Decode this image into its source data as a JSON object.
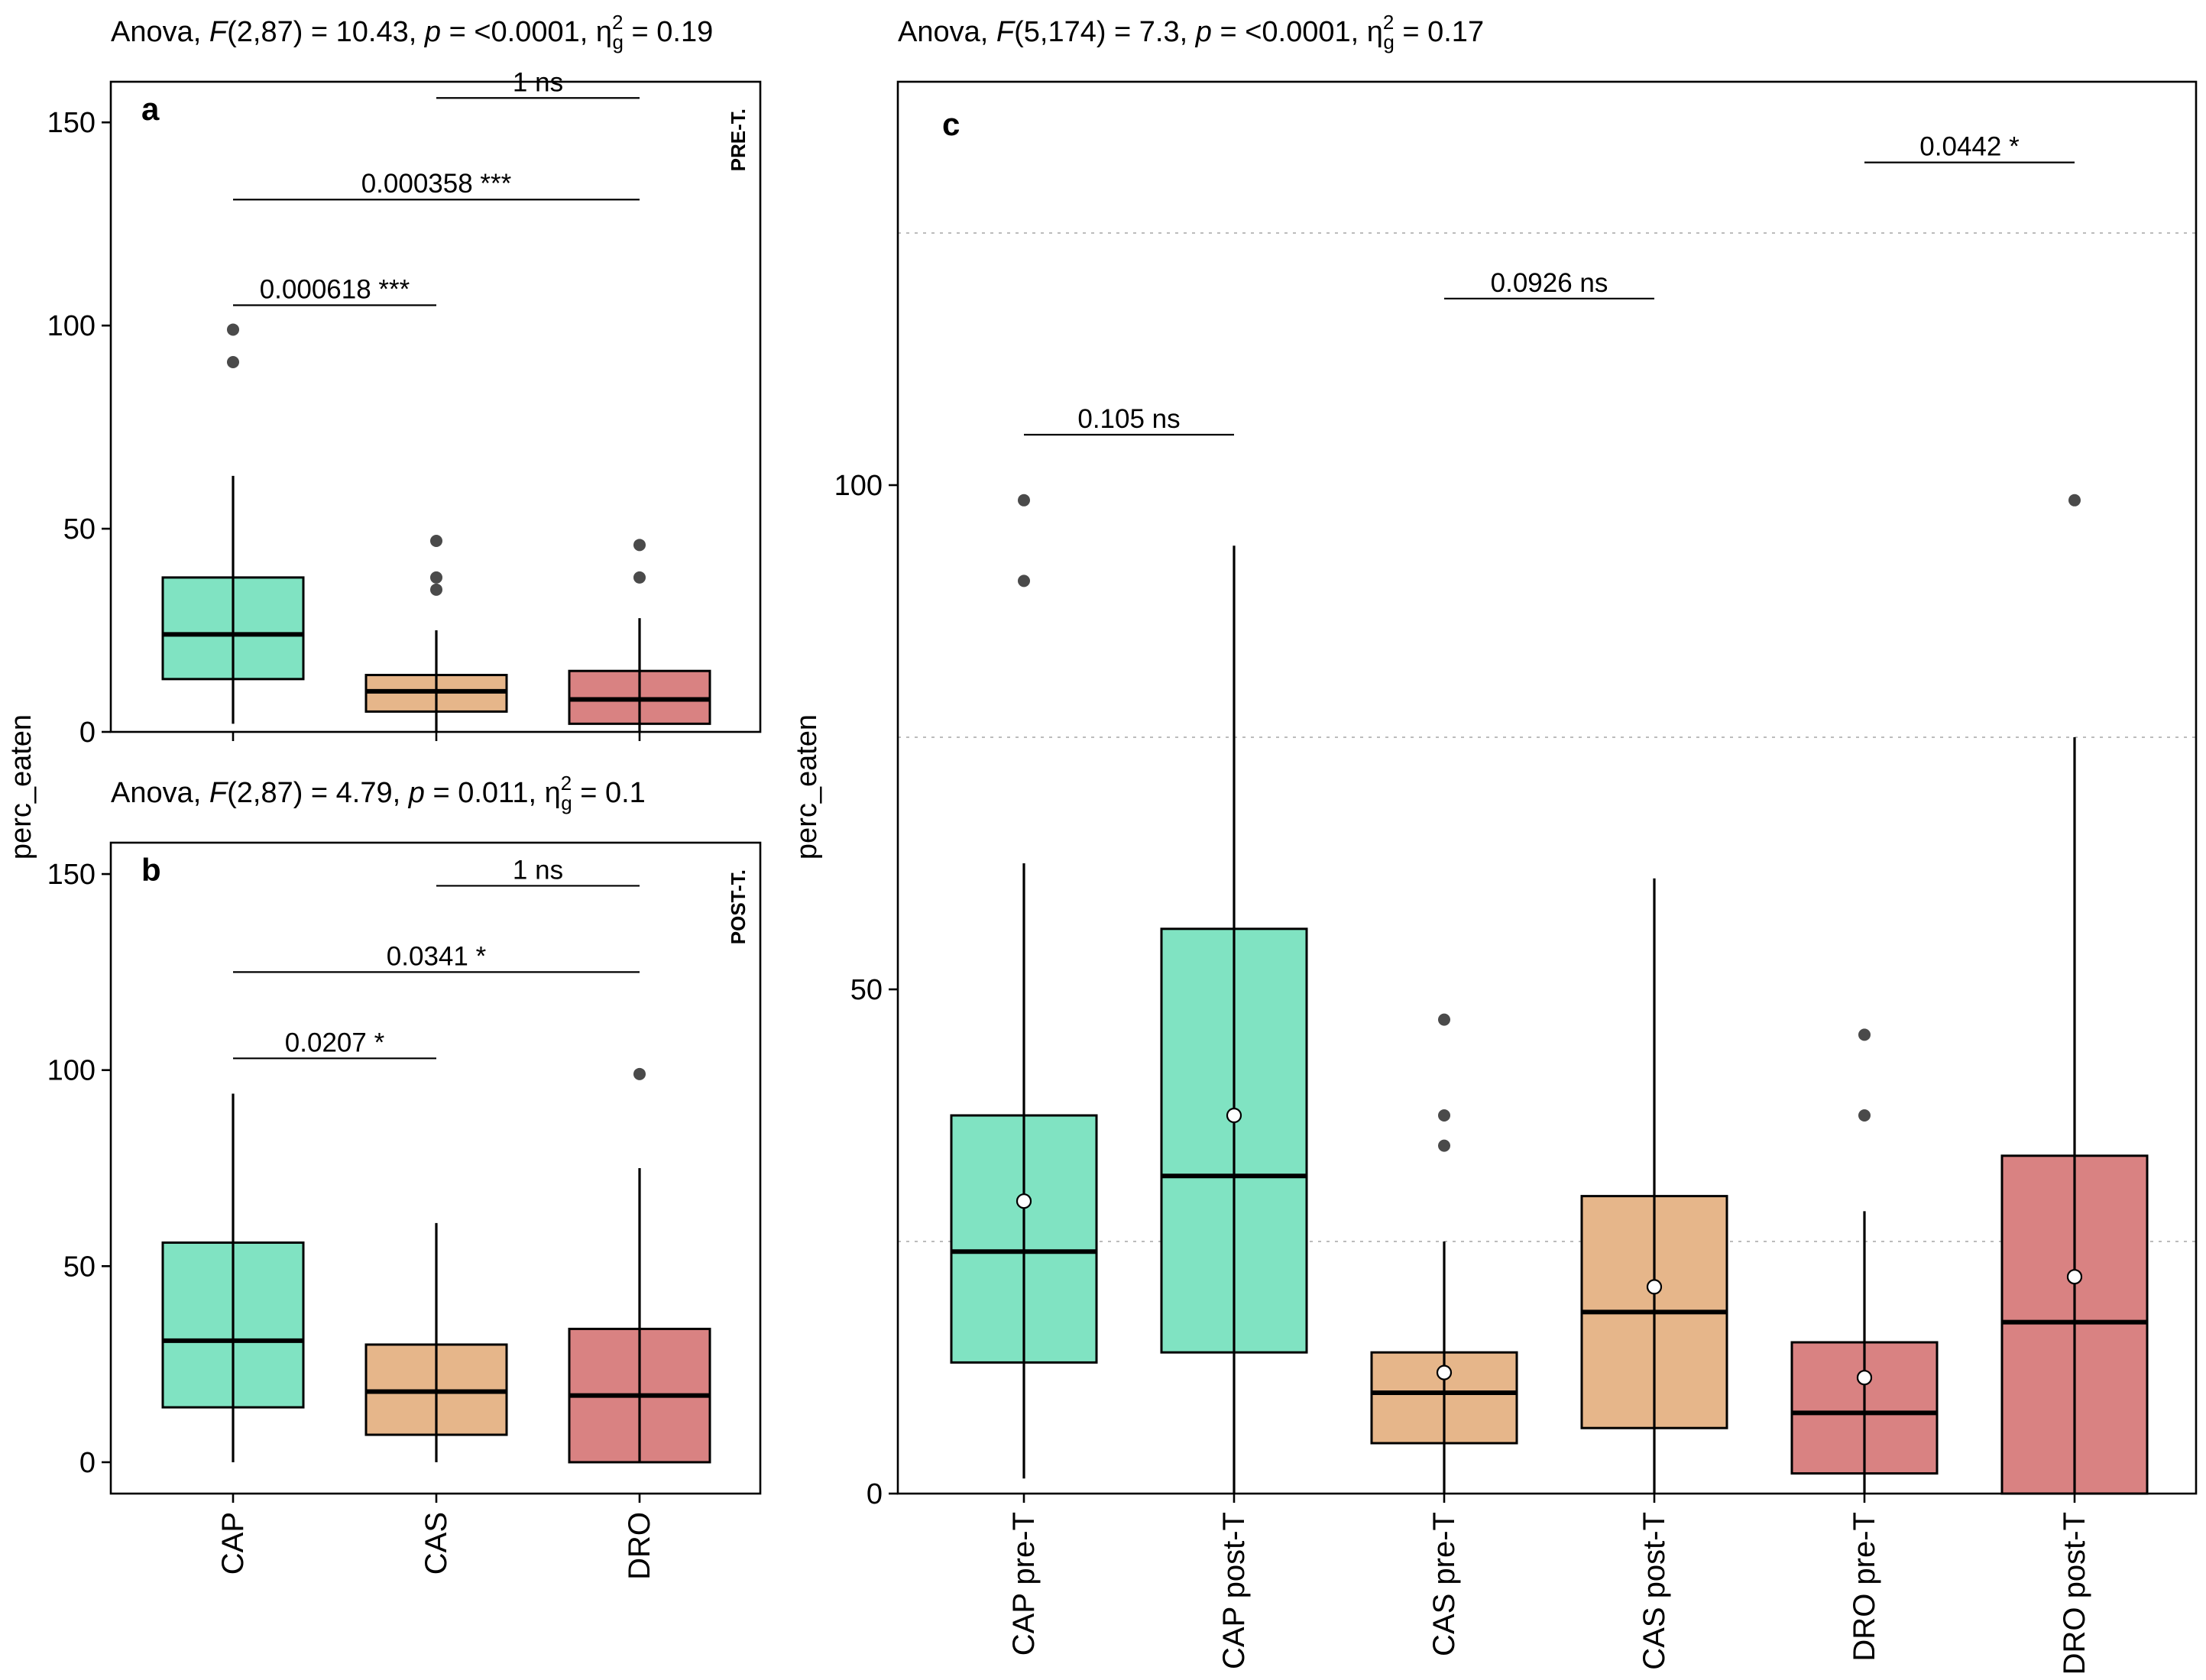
{
  "colors": {
    "CAP": "#80e3c2",
    "CAS": "#e6b68a",
    "DRO": "#d98282"
  },
  "chart_data": [
    {
      "id": "a",
      "type": "box",
      "panel_label": "a",
      "strip_label": "PRE-T.",
      "anova": {
        "lead": "Anova, ",
        "F": "F",
        "df": "(2,87) = 10.43, ",
        "p": "p",
        "pval": " = <0.0001, ",
        "eta": "η",
        "sup": "2",
        "sub": "g",
        "eval": " = 0.19"
      },
      "ylabel": "perc_eaten",
      "ylim": [
        0,
        160
      ],
      "yticks": [
        0,
        50,
        100,
        150
      ],
      "ytick_labels": [
        "0",
        "50",
        "100",
        "150"
      ],
      "categories": [
        "CAP",
        "CAS",
        "DRO"
      ],
      "show_xtick_labels": false,
      "boxes": [
        {
          "cat": "CAP",
          "color_key": "CAP",
          "q1": 13,
          "median": 24,
          "q3": 38,
          "whisker_low": 2,
          "whisker_high": 63,
          "outliers": [
            91,
            99
          ]
        },
        {
          "cat": "CAS",
          "color_key": "CAS",
          "q1": 5,
          "median": 10,
          "q3": 14,
          "whisker_low": 0,
          "whisker_high": 25,
          "outliers": [
            35,
            38,
            47
          ]
        },
        {
          "cat": "DRO",
          "color_key": "DRO",
          "q1": 2,
          "median": 8,
          "q3": 15,
          "whisker_low": 0,
          "whisker_high": 28,
          "outliers": [
            38,
            46
          ]
        }
      ],
      "brackets": [
        {
          "from": "CAS",
          "to": "DRO",
          "y": 156,
          "label": "1 ns"
        },
        {
          "from": "CAP",
          "to": "DRO",
          "y": 131,
          "label": "0.000358 ***"
        },
        {
          "from": "CAP",
          "to": "CAS",
          "y": 105,
          "label": "0.000618 ***"
        }
      ]
    },
    {
      "id": "b",
      "type": "box",
      "panel_label": "b",
      "strip_label": "POST-T.",
      "anova": {
        "lead": "Anova, ",
        "F": "F",
        "df": "(2,87) = 4.79, ",
        "p": "p",
        "pval": " = 0.011, ",
        "eta": "η",
        "sup": "2",
        "sub": "g",
        "eval": " = 0.1"
      },
      "ylabel": "perc_eaten",
      "ylim": [
        -8,
        158
      ],
      "yticks": [
        0,
        50,
        100,
        150
      ],
      "ytick_labels": [
        "0",
        "50",
        "100",
        "150"
      ],
      "categories": [
        "CAP",
        "CAS",
        "DRO"
      ],
      "show_xtick_labels": true,
      "boxes": [
        {
          "cat": "CAP",
          "color_key": "CAP",
          "q1": 14,
          "median": 31,
          "q3": 56,
          "whisker_low": 0,
          "whisker_high": 94,
          "outliers": []
        },
        {
          "cat": "CAS",
          "color_key": "CAS",
          "q1": 7,
          "median": 18,
          "q3": 30,
          "whisker_low": 0,
          "whisker_high": 61,
          "outliers": []
        },
        {
          "cat": "DRO",
          "color_key": "DRO",
          "q1": 0,
          "median": 17,
          "q3": 34,
          "whisker_low": 0,
          "whisker_high": 75,
          "outliers": [
            99
          ]
        }
      ],
      "brackets": [
        {
          "from": "CAS",
          "to": "DRO",
          "y": 147,
          "label": "1 ns"
        },
        {
          "from": "CAP",
          "to": "DRO",
          "y": 125,
          "label": "0.0341 *"
        },
        {
          "from": "CAP",
          "to": "CAS",
          "y": 103,
          "label": "0.0207 *"
        }
      ]
    },
    {
      "id": "c",
      "type": "box",
      "panel_label": "c",
      "strip_label": "",
      "anova": {
        "lead": "Anova, ",
        "F": "F",
        "df": "(5,174) = 7.3, ",
        "p": "p",
        "pval": " = <0.0001, ",
        "eta": "η",
        "sup": "2",
        "sub": "g",
        "eval": " = 0.17"
      },
      "ylabel": "perc_eaten",
      "ylim": [
        0,
        140
      ],
      "yticks": [
        0,
        50,
        100
      ],
      "ytick_labels": [
        "0",
        "50",
        "100"
      ],
      "grid_y": [
        25,
        75,
        125
      ],
      "categories": [
        "CAP pre-T",
        "CAP post-T",
        "CAS pre-T",
        "CAS post-T",
        "DRO pre-T",
        "DRO post-T"
      ],
      "show_xtick_labels": true,
      "boxes": [
        {
          "cat": "CAP pre-T",
          "color_key": "CAP",
          "q1": 13,
          "median": 24,
          "q3": 37.5,
          "whisker_low": 1.5,
          "whisker_high": 62.5,
          "outliers": [
            90.5,
            98.5
          ],
          "mean": 29
        },
        {
          "cat": "CAP post-T",
          "color_key": "CAP",
          "q1": 14,
          "median": 31.5,
          "q3": 56,
          "whisker_low": 0,
          "whisker_high": 94,
          "outliers": [],
          "mean": 37.5
        },
        {
          "cat": "CAS pre-T",
          "color_key": "CAS",
          "q1": 5,
          "median": 10,
          "q3": 14,
          "whisker_low": 0,
          "whisker_high": 25,
          "outliers": [
            34.5,
            37.5,
            47
          ],
          "mean": 12
        },
        {
          "cat": "CAS post-T",
          "color_key": "CAS",
          "q1": 6.5,
          "median": 18,
          "q3": 29.5,
          "whisker_low": 0,
          "whisker_high": 61,
          "outliers": [],
          "mean": 20.5
        },
        {
          "cat": "DRO pre-T",
          "color_key": "DRO",
          "q1": 2,
          "median": 8,
          "q3": 15,
          "whisker_low": 0,
          "whisker_high": 28,
          "outliers": [
            37.5,
            45.5
          ],
          "mean": 11.5
        },
        {
          "cat": "DRO post-T",
          "color_key": "DRO",
          "q1": 0,
          "median": 17,
          "q3": 33.5,
          "whisker_low": 0,
          "whisker_high": 75,
          "outliers": [
            98.5
          ],
          "mean": 21.5
        }
      ],
      "brackets": [
        {
          "from": "DRO pre-T",
          "to": "DRO post-T",
          "y": 132,
          "label": "0.0442 *"
        },
        {
          "from": "CAS pre-T",
          "to": "CAS post-T",
          "y": 118.5,
          "label": "0.0926 ns"
        },
        {
          "from": "CAP pre-T",
          "to": "CAP post-T",
          "y": 105,
          "label": "0.105 ns"
        }
      ]
    }
  ]
}
